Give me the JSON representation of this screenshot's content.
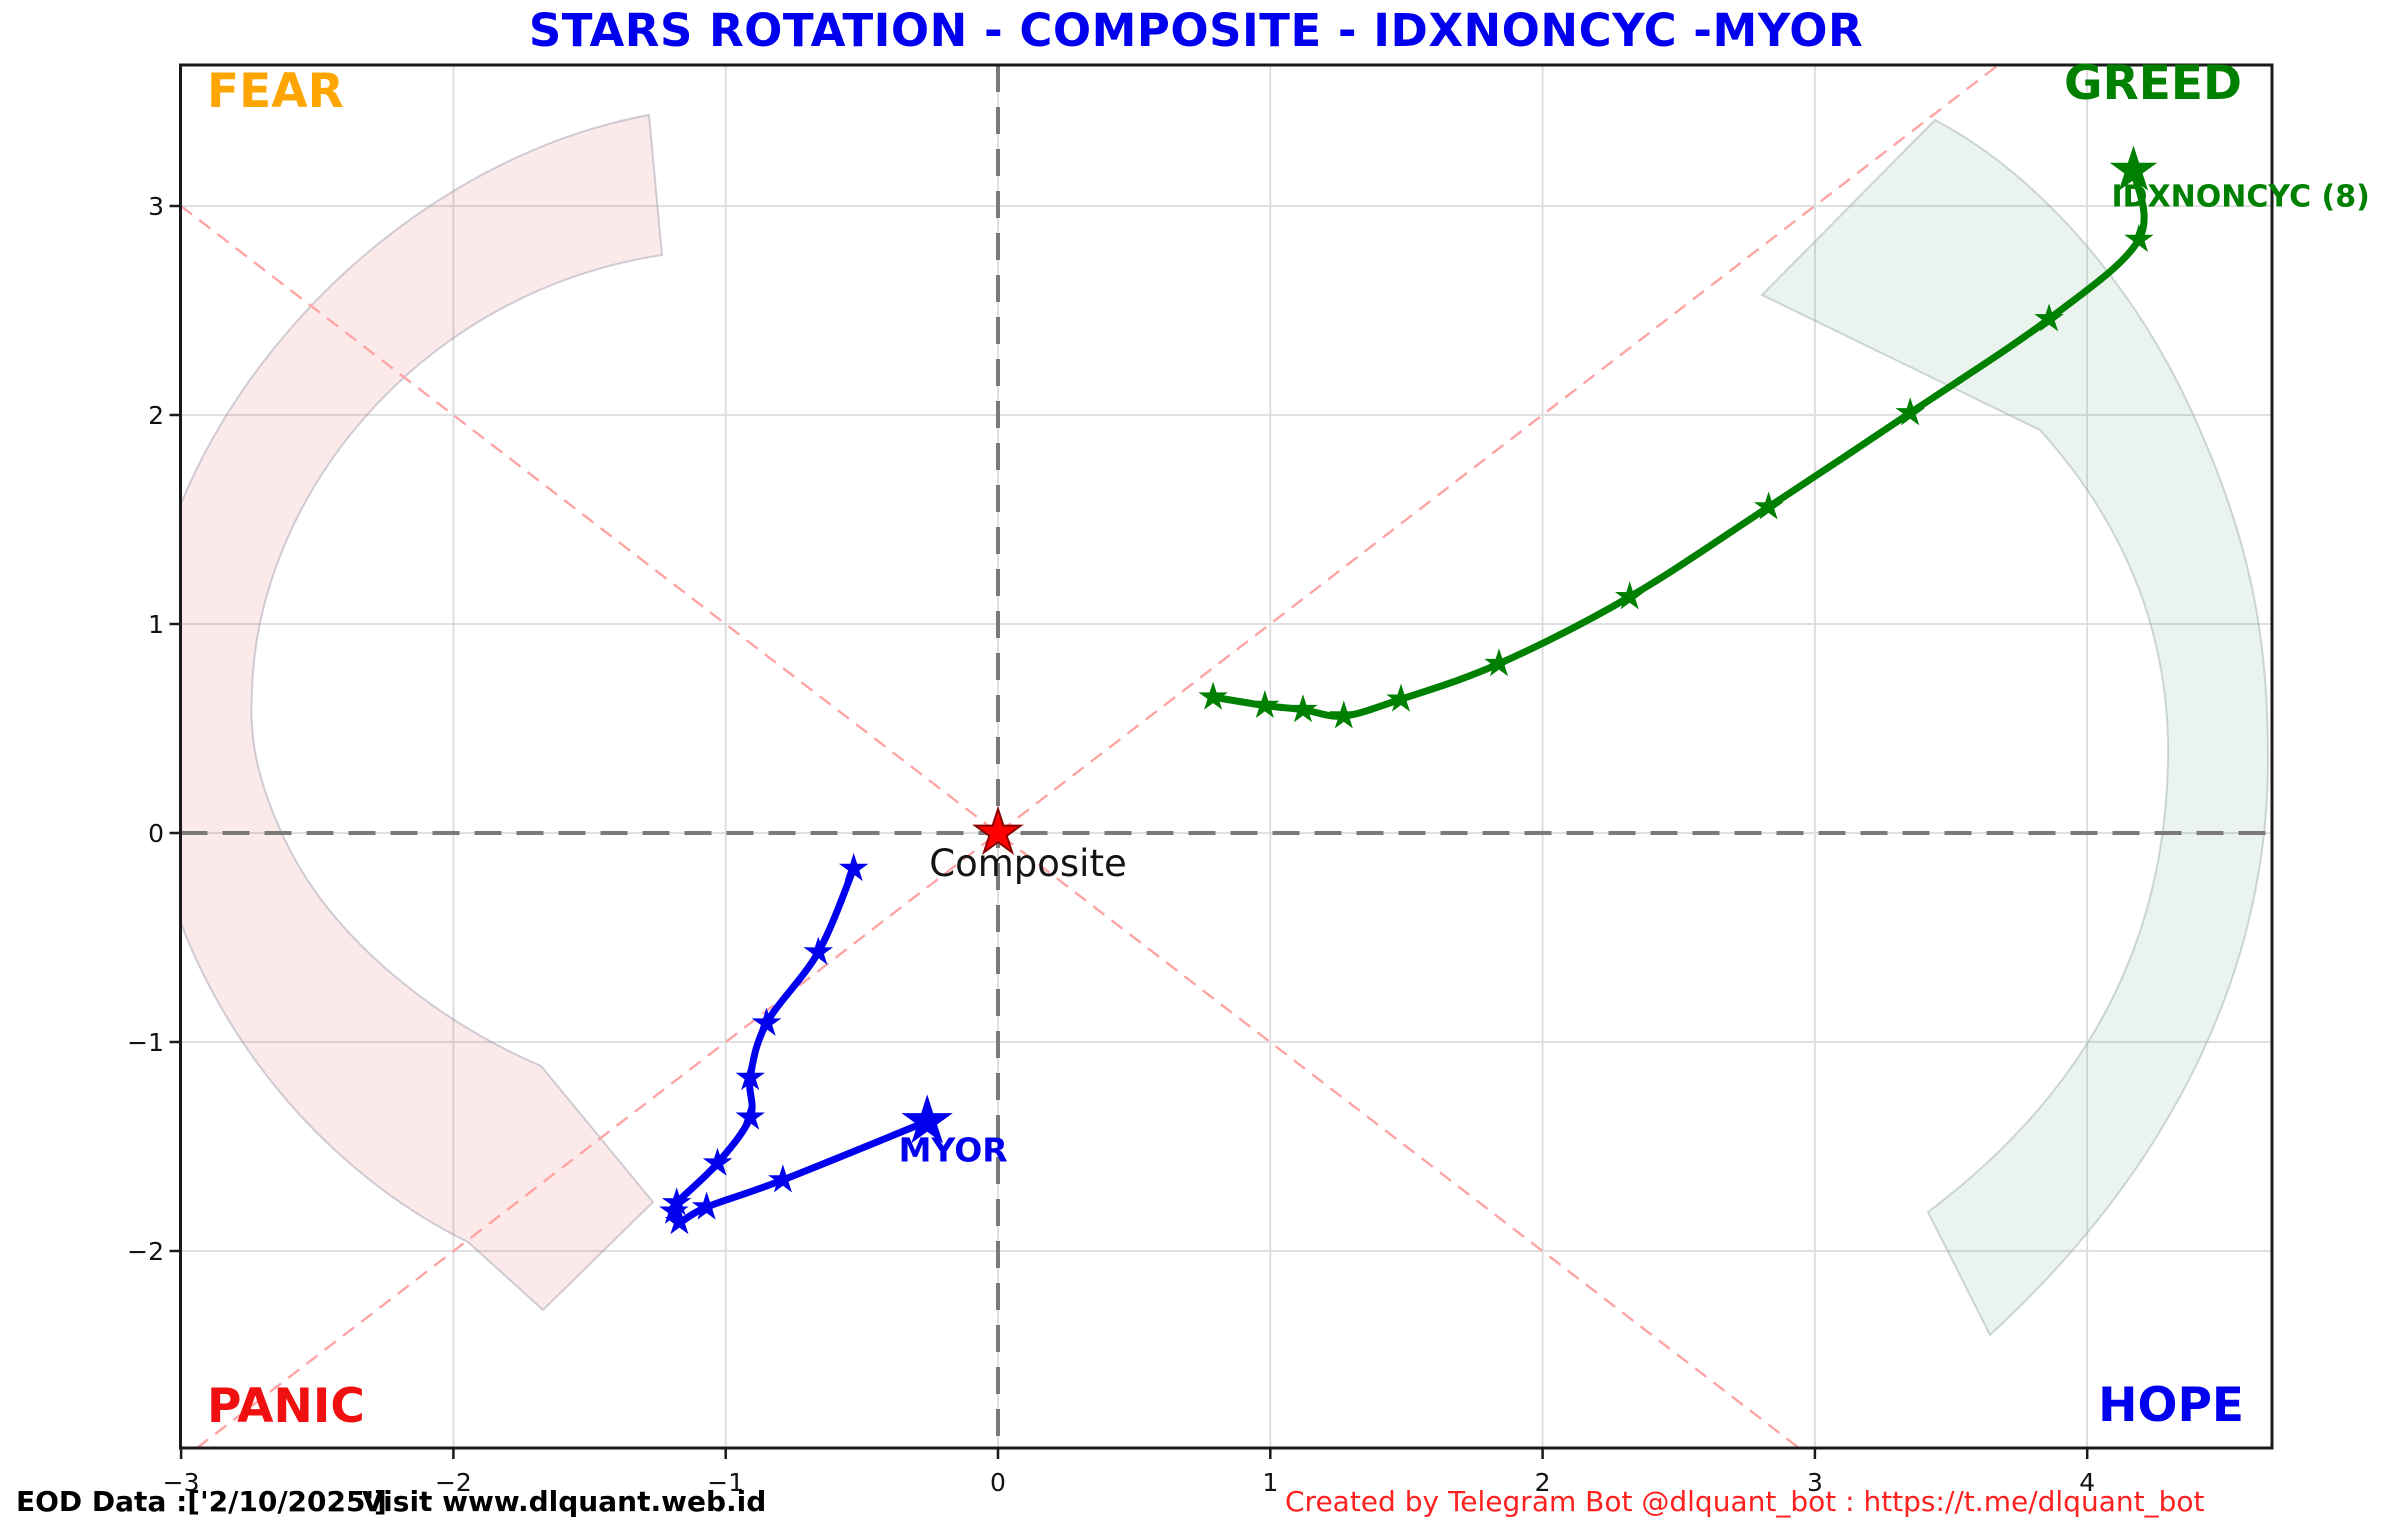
{
  "title": "STARS ROTATION - COMPOSITE - IDXNONCYC -MYOR",
  "quadrants": {
    "fear": {
      "label": "FEAR",
      "color": "#FFA500",
      "position": "top-left"
    },
    "greed": {
      "label": "GREED",
      "color": "#008000",
      "position": "top-right"
    },
    "panic": {
      "label": "PANIC",
      "color": "#F01010",
      "position": "bottom-left"
    },
    "hope": {
      "label": "HOPE",
      "color": "#0000EE",
      "position": "bottom-right"
    }
  },
  "footer": {
    "eod_text": "EOD Data :['2/10/2025']",
    "visit_text": "Visit www.dlquant.web.id",
    "credit_text": "Created by Telegram Bot @dlquant_bot : https://t.me/dlquant_bot"
  },
  "colors": {
    "title": "#0000EE",
    "grid": "#DCDCDC",
    "axis_border": "#1A1A1A",
    "zero_line": "#7A7A7A",
    "diagonal": "#FFA4A4",
    "footer_right": "#FF2020",
    "composite_label": "#141414",
    "arrow_left_fill": "rgba(225,65,65,0.11)",
    "arrow_right_fill": "rgba(45,135,85,0.10)"
  },
  "chart_data": {
    "type": "scatter",
    "title": "STARS ROTATION - COMPOSITE - IDXNONCYC -MYOR",
    "xlabel": "",
    "ylabel": "",
    "xlim": [
      -3,
      4.68
    ],
    "ylim": [
      -2.94,
      3.67
    ],
    "grid": true,
    "legend_position": "none",
    "x_tick_values": [
      -3,
      -2,
      -1,
      0,
      1,
      2,
      3,
      4
    ],
    "x_tick_labels": [
      "−3",
      "−2",
      "−1",
      "0",
      "1",
      "2",
      "3",
      "4"
    ],
    "y_tick_values": [
      3,
      2,
      1,
      0,
      -1,
      -2
    ],
    "y_tick_labels": [
      "3",
      "2",
      "1",
      "0",
      "−1",
      "−2"
    ],
    "center_point": {
      "label": "Composite",
      "x": 0,
      "y": 0,
      "color": "#FF0000"
    },
    "series": [
      {
        "name": "IDXNONCYC (8)",
        "color": "#008000",
        "marker": "star",
        "points": [
          [
            0.79,
            0.65
          ],
          [
            0.98,
            0.61
          ],
          [
            1.12,
            0.59
          ],
          [
            1.27,
            0.56
          ],
          [
            1.48,
            0.64
          ],
          [
            1.84,
            0.81
          ],
          [
            2.32,
            1.13
          ],
          [
            2.83,
            1.56
          ],
          [
            3.35,
            2.01
          ],
          [
            3.86,
            2.46
          ],
          [
            4.19,
            2.84
          ],
          [
            4.17,
            3.17
          ]
        ],
        "current_index": 11
      },
      {
        "name": "MYOR",
        "color": "#0000EE",
        "marker": "star",
        "points": [
          [
            -0.53,
            -0.17
          ],
          [
            -0.66,
            -0.57
          ],
          [
            -0.85,
            -0.91
          ],
          [
            -0.91,
            -1.17
          ],
          [
            -0.91,
            -1.36
          ],
          [
            -1.03,
            -1.58
          ],
          [
            -1.18,
            -1.77
          ],
          [
            -1.19,
            -1.81
          ],
          [
            -1.17,
            -1.86
          ],
          [
            -1.07,
            -1.79
          ],
          [
            -0.79,
            -1.66
          ],
          [
            -0.26,
            -1.38
          ]
        ],
        "current_index": 11
      }
    ]
  }
}
